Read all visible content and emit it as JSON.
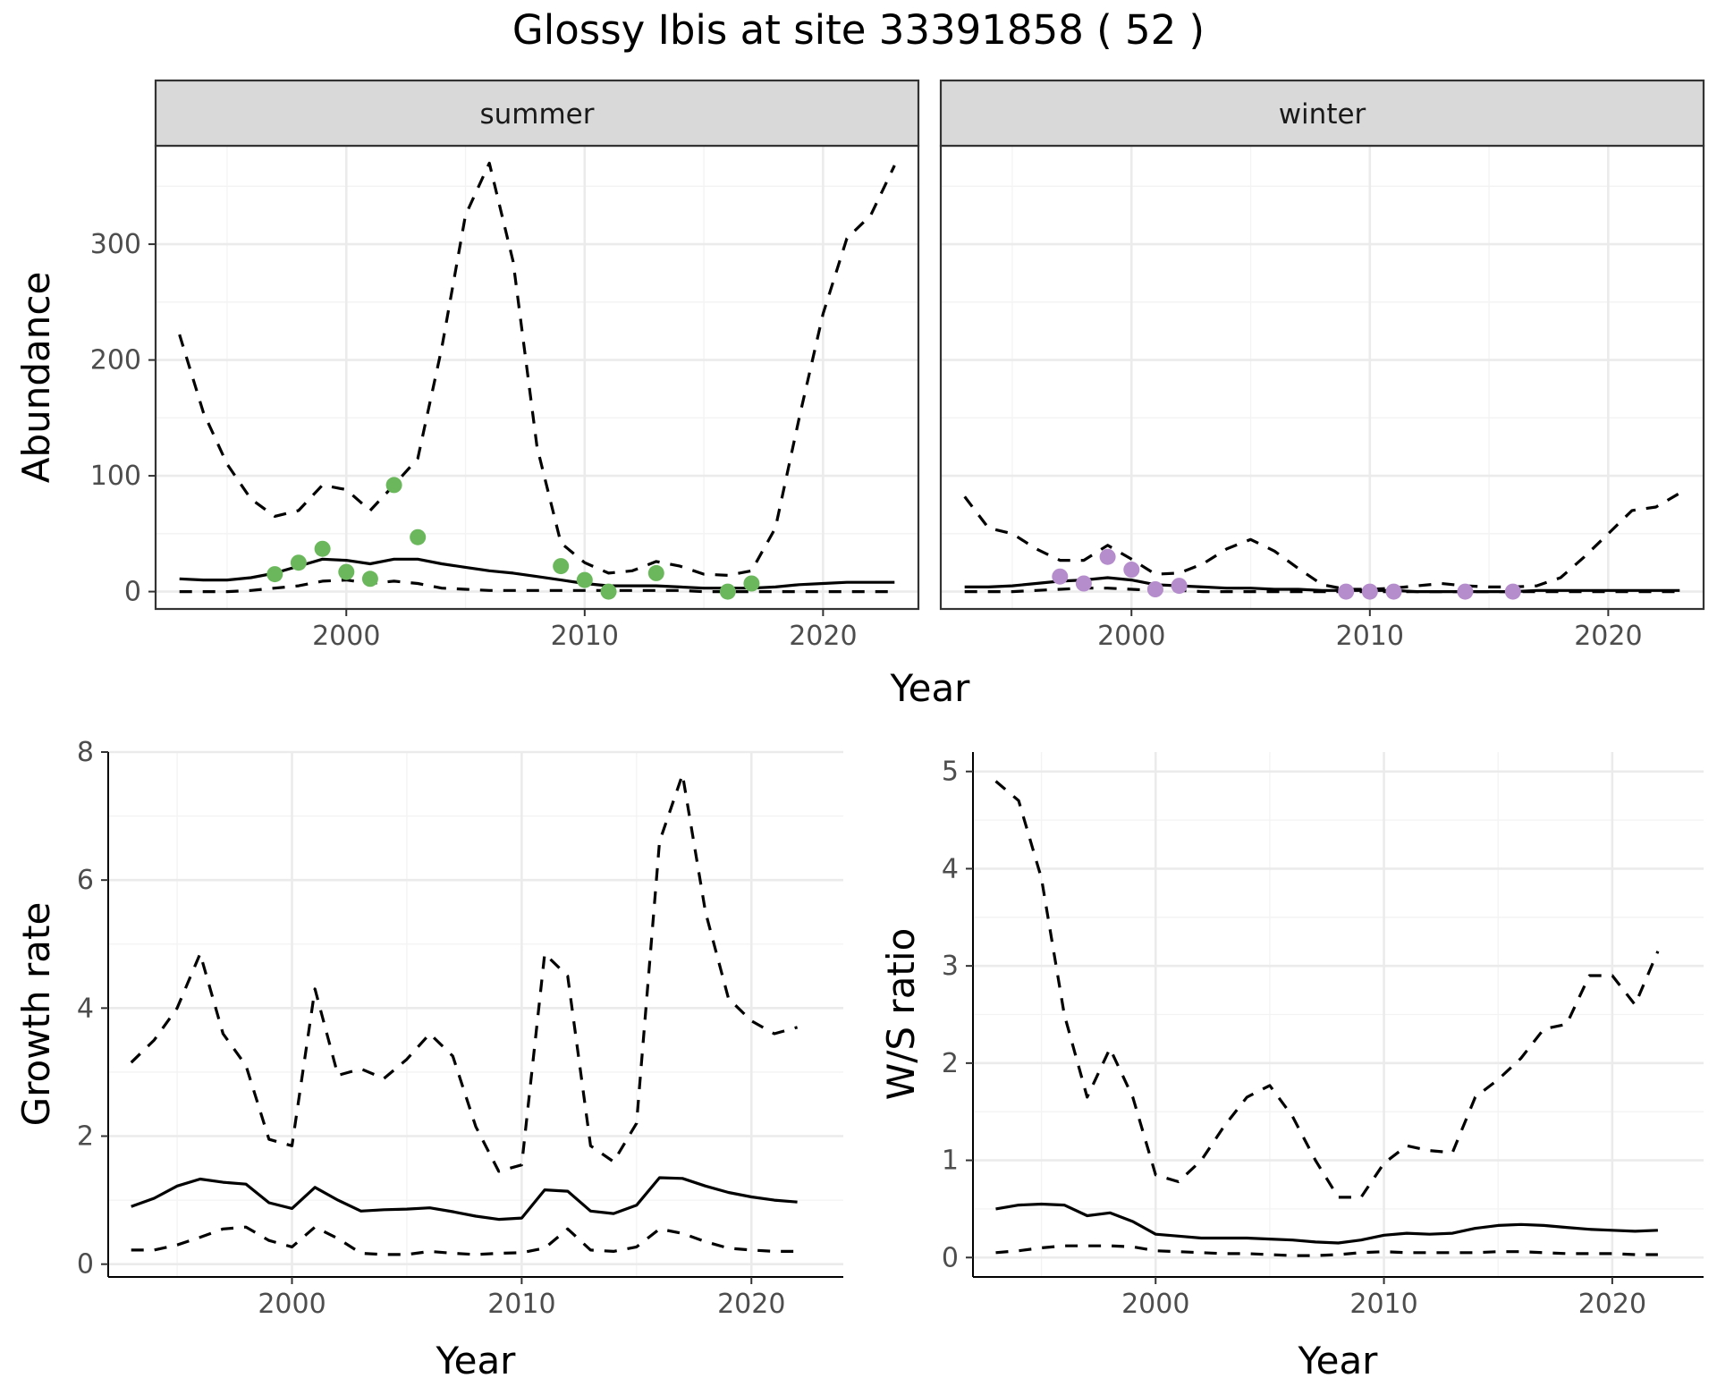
{
  "title": "Glossy Ibis at site 33391858 ( 52 )",
  "colors": {
    "summer_points": "#6ab85b",
    "winter_points": "#b58ccc",
    "lines": "#000000",
    "strip_bg": "#d9d9d9"
  },
  "chart_data": [
    {
      "id": "abundance",
      "type": "line",
      "facets": [
        "summer",
        "winter"
      ],
      "ylabel": "Abundance",
      "xlabel": "Year",
      "xlim": [
        1992,
        2024
      ],
      "ylim": [
        -15,
        385
      ],
      "x_ticks": [
        2000,
        2010,
        2020
      ],
      "y_ticks": [
        0,
        100,
        200,
        300
      ],
      "grid": true,
      "panels": [
        {
          "facet": "summer",
          "x": [
            1993,
            1994,
            1995,
            1996,
            1997,
            1998,
            1999,
            2000,
            2001,
            2002,
            2003,
            2004,
            2005,
            2006,
            2007,
            2008,
            2009,
            2010,
            2011,
            2012,
            2013,
            2014,
            2015,
            2016,
            2017,
            2018,
            2019,
            2020,
            2021,
            2022,
            2023
          ],
          "mean": [
            11,
            10,
            10,
            12,
            16,
            22,
            28,
            27,
            24,
            28,
            28,
            24,
            21,
            18,
            16,
            13,
            10,
            7,
            5,
            5,
            5,
            4,
            3,
            3,
            3,
            4,
            6,
            7,
            8,
            8,
            8
          ],
          "upper": [
            222,
            155,
            110,
            80,
            65,
            70,
            92,
            88,
            70,
            92,
            115,
            210,
            325,
            370,
            285,
            125,
            42,
            25,
            16,
            18,
            26,
            22,
            15,
            14,
            18,
            55,
            150,
            240,
            305,
            325,
            368
          ],
          "lower": [
            0,
            0,
            0,
            1,
            3,
            5,
            9,
            10,
            7,
            9,
            7,
            3,
            2,
            1,
            1,
            1,
            1,
            1,
            1,
            1,
            1,
            1,
            0,
            0,
            0,
            0,
            0,
            0,
            0,
            0,
            0
          ],
          "points": {
            "x": [
              1997,
              1998,
              1999,
              2000,
              2001,
              2002,
              2003,
              2009,
              2010,
              2011,
              2013,
              2016,
              2017
            ],
            "y": [
              15,
              25,
              37,
              17,
              11,
              92,
              47,
              22,
              10,
              0,
              16,
              0,
              7
            ]
          }
        },
        {
          "facet": "winter",
          "x": [
            1993,
            1994,
            1995,
            1996,
            1997,
            1998,
            1999,
            2000,
            2001,
            2002,
            2003,
            2004,
            2005,
            2006,
            2007,
            2008,
            2009,
            2010,
            2011,
            2012,
            2013,
            2014,
            2015,
            2016,
            2017,
            2018,
            2019,
            2020,
            2021,
            2022,
            2023
          ],
          "mean": [
            4,
            4,
            5,
            7,
            9,
            10,
            12,
            10,
            6,
            5,
            4,
            3,
            3,
            2,
            2,
            1,
            1,
            1,
            1,
            0,
            0,
            0,
            0,
            0,
            1,
            1,
            1,
            1,
            1,
            1,
            1
          ],
          "upper": [
            82,
            55,
            50,
            37,
            27,
            27,
            40,
            28,
            15,
            16,
            24,
            37,
            45,
            35,
            20,
            6,
            2,
            2,
            3,
            5,
            7,
            5,
            4,
            4,
            5,
            12,
            30,
            50,
            70,
            73,
            85
          ],
          "lower": [
            0,
            0,
            0,
            1,
            2,
            3,
            3,
            2,
            1,
            1,
            0,
            0,
            0,
            0,
            0,
            0,
            0,
            0,
            0,
            0,
            0,
            0,
            0,
            0,
            0,
            0,
            0,
            0,
            0,
            0,
            0
          ],
          "points": {
            "x": [
              1997,
              1998,
              1999,
              2000,
              2001,
              2002,
              2009,
              2010,
              2011,
              2014,
              2016
            ],
            "y": [
              13,
              7,
              30,
              19,
              2,
              5,
              0,
              0,
              0,
              0,
              0
            ]
          }
        }
      ]
    },
    {
      "id": "growth",
      "type": "line",
      "ylabel": "Growth rate",
      "xlabel": "Year",
      "xlim": [
        1992,
        2024
      ],
      "ylim": [
        -0.2,
        8
      ],
      "x_ticks": [
        2000,
        2010,
        2020
      ],
      "y_ticks": [
        0,
        2,
        4,
        6,
        8
      ],
      "grid": true,
      "x": [
        1993,
        1994,
        1995,
        1996,
        1997,
        1998,
        1999,
        2000,
        2001,
        2002,
        2003,
        2004,
        2005,
        2006,
        2007,
        2008,
        2009,
        2010,
        2011,
        2012,
        2013,
        2014,
        2015,
        2016,
        2017,
        2018,
        2019,
        2020,
        2021,
        2022
      ],
      "mean": [
        0.9,
        1.03,
        1.22,
        1.33,
        1.28,
        1.25,
        0.96,
        0.87,
        1.2,
        1.0,
        0.83,
        0.85,
        0.86,
        0.88,
        0.82,
        0.75,
        0.7,
        0.72,
        1.16,
        1.14,
        0.83,
        0.79,
        0.92,
        1.35,
        1.34,
        1.22,
        1.12,
        1.05,
        1.0,
        0.97
      ],
      "upper": [
        3.15,
        3.5,
        4.0,
        4.85,
        3.6,
        3.1,
        1.95,
        1.85,
        4.3,
        2.95,
        3.05,
        2.9,
        3.2,
        3.6,
        3.25,
        2.15,
        1.45,
        1.55,
        4.85,
        4.5,
        1.85,
        1.6,
        2.2,
        6.6,
        7.65,
        5.5,
        4.15,
        3.8,
        3.6,
        3.7
      ],
      "lower": [
        0.22,
        0.22,
        0.3,
        0.42,
        0.55,
        0.58,
        0.37,
        0.27,
        0.58,
        0.4,
        0.17,
        0.15,
        0.15,
        0.2,
        0.17,
        0.15,
        0.17,
        0.18,
        0.25,
        0.55,
        0.22,
        0.2,
        0.27,
        0.55,
        0.48,
        0.35,
        0.25,
        0.22,
        0.2,
        0.2
      ]
    },
    {
      "id": "ws_ratio",
      "type": "line",
      "ylabel": "W/S ratio",
      "xlabel": "Year",
      "xlim": [
        1992,
        2024
      ],
      "ylim": [
        -0.2,
        5.2
      ],
      "x_ticks": [
        2000,
        2010,
        2020
      ],
      "y_ticks": [
        0,
        1,
        2,
        3,
        4,
        5
      ],
      "grid": true,
      "x": [
        1993,
        1994,
        1995,
        1996,
        1997,
        1998,
        1999,
        2000,
        2001,
        2002,
        2003,
        2004,
        2005,
        2006,
        2007,
        2008,
        2009,
        2010,
        2011,
        2012,
        2013,
        2014,
        2015,
        2016,
        2017,
        2018,
        2019,
        2020,
        2021,
        2022
      ],
      "mean": [
        0.5,
        0.54,
        0.55,
        0.54,
        0.43,
        0.46,
        0.37,
        0.24,
        0.22,
        0.2,
        0.2,
        0.2,
        0.19,
        0.18,
        0.16,
        0.15,
        0.18,
        0.23,
        0.25,
        0.24,
        0.25,
        0.3,
        0.33,
        0.34,
        0.33,
        0.31,
        0.29,
        0.28,
        0.27,
        0.28
      ],
      "upper": [
        4.9,
        4.7,
        3.9,
        2.5,
        1.65,
        2.15,
        1.65,
        0.85,
        0.78,
        1.0,
        1.35,
        1.65,
        1.77,
        1.45,
        1.0,
        0.62,
        0.62,
        0.97,
        1.15,
        1.1,
        1.08,
        1.65,
        1.83,
        2.05,
        2.35,
        2.4,
        2.9,
        2.9,
        2.6,
        3.15
      ],
      "lower": [
        0.05,
        0.07,
        0.1,
        0.12,
        0.12,
        0.12,
        0.11,
        0.07,
        0.06,
        0.05,
        0.04,
        0.04,
        0.03,
        0.02,
        0.02,
        0.03,
        0.05,
        0.06,
        0.05,
        0.05,
        0.05,
        0.05,
        0.06,
        0.06,
        0.05,
        0.04,
        0.04,
        0.04,
        0.03,
        0.03
      ]
    }
  ]
}
